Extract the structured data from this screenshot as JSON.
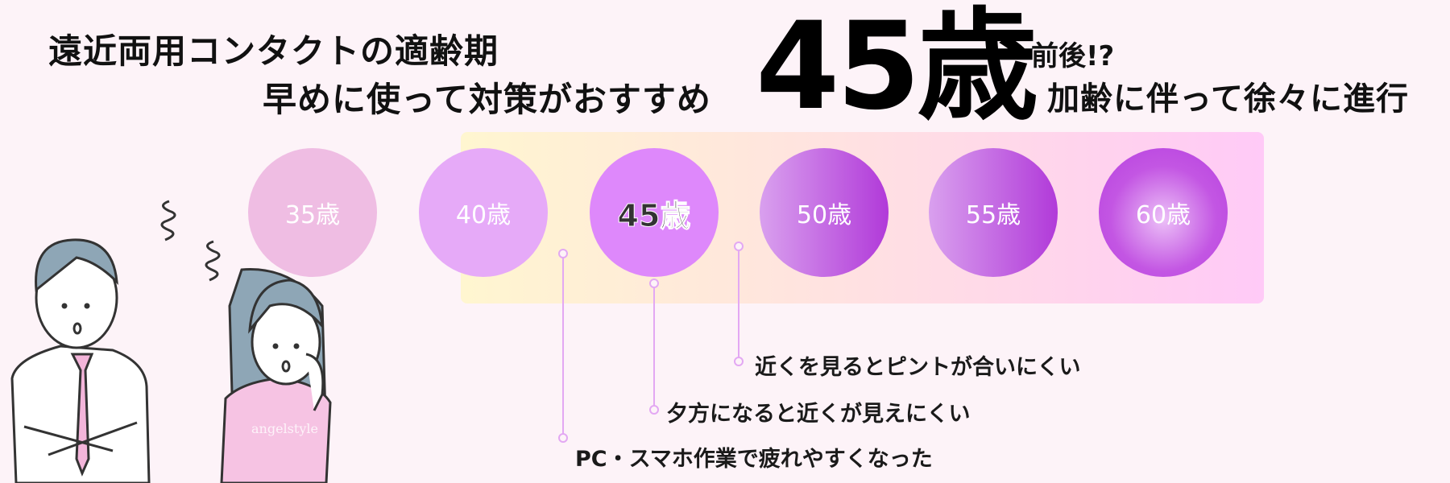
{
  "header": {
    "line1": "遠近両用コンタクトの適齢期",
    "line2": "早めに使って対策がおすすめ",
    "highlight_age": "45歳",
    "suffix": "前後!?",
    "subline": "加齢に伴って徐々に進行"
  },
  "timeline": {
    "ages": [
      {
        "label": "35歳",
        "color": "#efbde3"
      },
      {
        "label": "40歳",
        "color": "#e6aaf8"
      },
      {
        "label": "45歳",
        "color": "#de88fb",
        "highlighted": true
      },
      {
        "label": "50歳",
        "color": "#b13ad9"
      },
      {
        "label": "55歳",
        "color": "#b13ad9"
      },
      {
        "label": "60歳",
        "color": "#b640e0"
      }
    ]
  },
  "symptoms": [
    "近くを見るとピントが合いにくい",
    "夕方になると近くが見えにくい",
    "PC・スマホ作業で疲れやすくなった"
  ],
  "watermark": "angelstyle",
  "colors": {
    "background": "#fdf3f8",
    "connector": "#e3a8f3"
  }
}
